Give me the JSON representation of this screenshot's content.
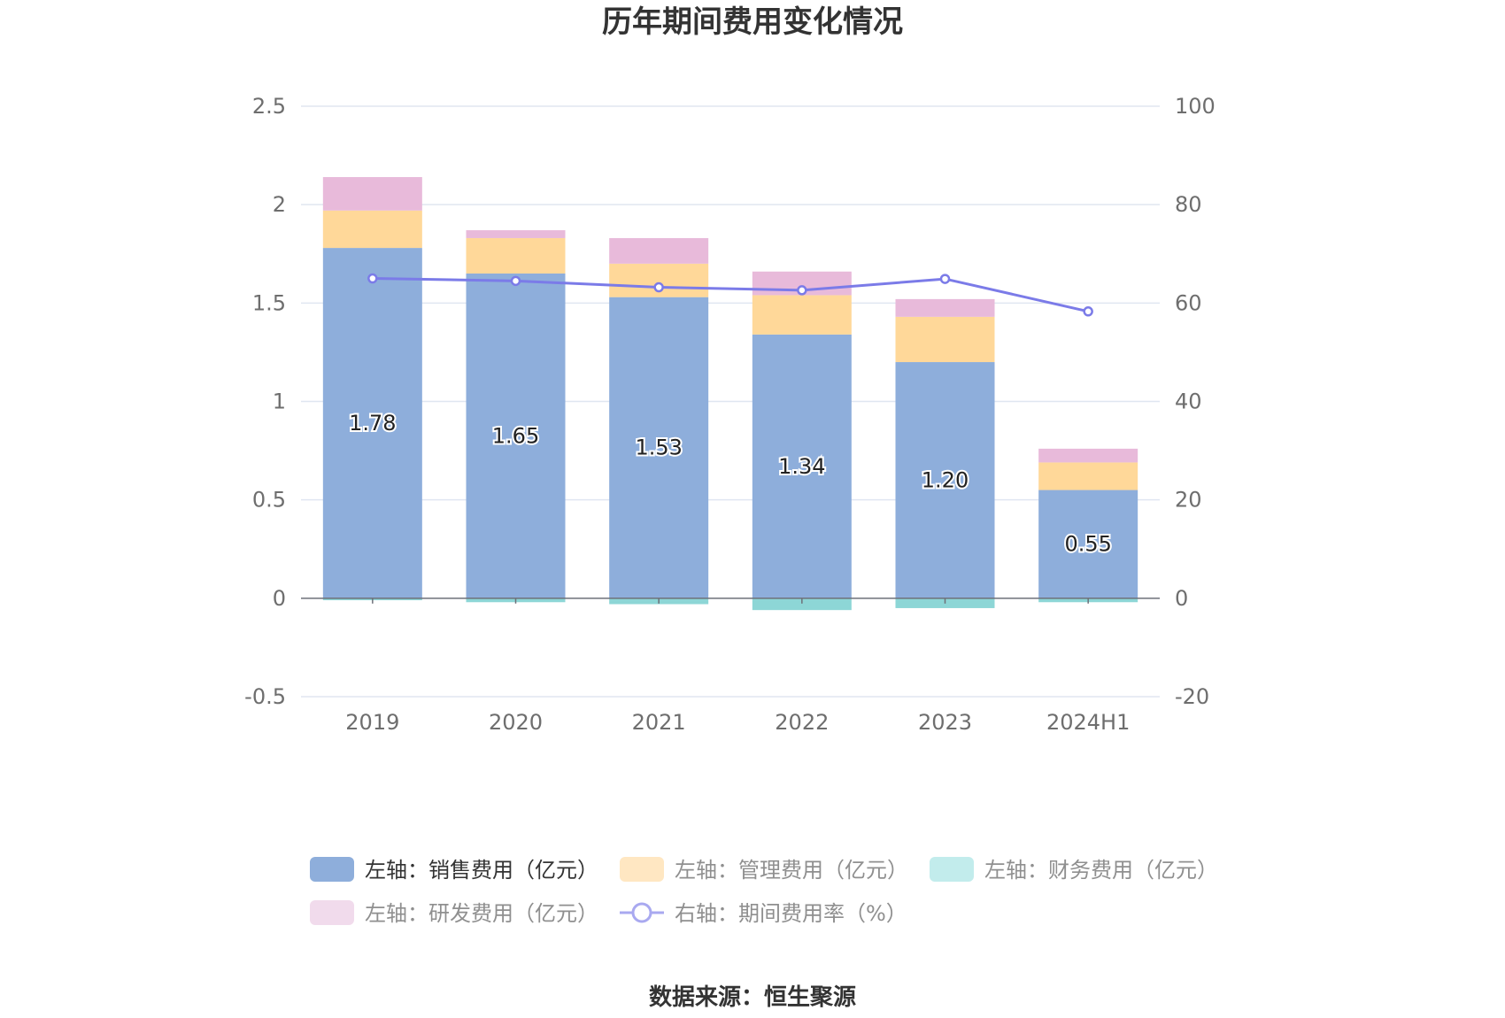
{
  "title": "历年期间费用变化情况",
  "source": "数据来源：恒生聚源",
  "chart_data": {
    "type": "bar",
    "stacked": true,
    "categories": [
      "2019",
      "2020",
      "2021",
      "2022",
      "2023",
      "2024H1"
    ],
    "left_axis": {
      "min": -0.5,
      "max": 2.5,
      "ticks": [
        "-0.5",
        "0",
        "0.5",
        "1",
        "1.5",
        "2",
        "2.5"
      ]
    },
    "right_axis": {
      "min": -20,
      "max": 100,
      "ticks": [
        "-20",
        "0",
        "20",
        "40",
        "60",
        "80",
        "100"
      ]
    },
    "grid": true,
    "legend_position": "bottom",
    "series": [
      {
        "name": "左轴：销售费用（亿元）",
        "type": "bar",
        "axis": "left",
        "color": "#8eaedb",
        "values": [
          1.78,
          1.65,
          1.53,
          1.34,
          1.2,
          0.55
        ],
        "labels": [
          "1.78",
          "1.65",
          "1.53",
          "1.34",
          "1.20",
          "0.55"
        ]
      },
      {
        "name": "左轴：管理费用（亿元）",
        "type": "bar",
        "axis": "left",
        "color": "#ffd899",
        "values": [
          0.19,
          0.18,
          0.17,
          0.2,
          0.23,
          0.14
        ]
      },
      {
        "name": "左轴：财务费用（亿元）",
        "type": "bar",
        "axis": "left",
        "color": "#8dd6d6",
        "values": [
          -0.01,
          -0.02,
          -0.03,
          -0.06,
          -0.05,
          -0.02
        ]
      },
      {
        "name": "左轴：研发费用（亿元）",
        "type": "bar",
        "axis": "left",
        "color": "#e8bada",
        "values": [
          0.17,
          0.04,
          0.13,
          0.12,
          0.09,
          0.07
        ]
      },
      {
        "name": "右轴：期间费用率（%）",
        "type": "line",
        "axis": "right",
        "color": "#7b7be8",
        "values": [
          65.0,
          64.5,
          63.2,
          62.6,
          64.9,
          58.3
        ]
      }
    ]
  }
}
